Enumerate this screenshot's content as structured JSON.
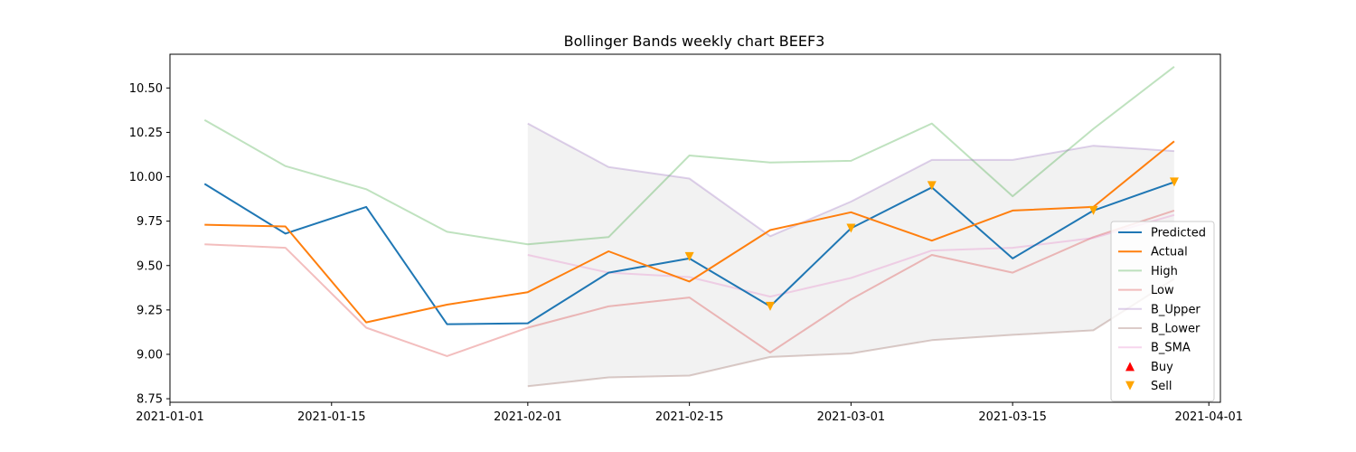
{
  "chart_data": {
    "type": "line",
    "title": "Bollinger Bands weekly chart BEEF3",
    "xlabel": "",
    "ylabel": "",
    "x": [
      "2021-01-04",
      "2021-01-11",
      "2021-01-18",
      "2021-01-25",
      "2021-02-01",
      "2021-02-08",
      "2021-02-15",
      "2021-02-22",
      "2021-03-01",
      "2021-03-08",
      "2021-03-15",
      "2021-03-22",
      "2021-03-29"
    ],
    "xlim": [
      "2021-01-01",
      "2021-04-02"
    ],
    "ylim": [
      8.73,
      10.69
    ],
    "x_ticks": [
      "2021-01-01",
      "2021-01-15",
      "2021-02-01",
      "2021-02-15",
      "2021-03-01",
      "2021-03-15",
      "2021-04-01"
    ],
    "y_ticks": [
      8.75,
      9.0,
      9.25,
      9.5,
      9.75,
      10.0,
      10.25,
      10.5
    ],
    "y_tick_labels": [
      "8.75",
      "9.00",
      "9.25",
      "9.50",
      "9.75",
      "10.00",
      "10.25",
      "10.50"
    ],
    "grid": false,
    "legend_position": "lower-right",
    "series": [
      {
        "name": "Predicted",
        "color": "#1f77b4",
        "alpha": 1.0,
        "values": [
          9.96,
          9.68,
          9.83,
          9.17,
          9.175,
          9.46,
          9.54,
          9.27,
          9.71,
          9.94,
          9.54,
          9.81,
          9.97
        ]
      },
      {
        "name": "Actual",
        "color": "#ff7f0e",
        "alpha": 1.0,
        "values": [
          9.73,
          9.72,
          9.18,
          9.28,
          9.35,
          9.58,
          9.41,
          9.7,
          9.8,
          9.64,
          9.81,
          9.83,
          10.2
        ]
      },
      {
        "name": "High",
        "color": "#2ca02c",
        "alpha": 0.3,
        "values": [
          10.32,
          10.06,
          9.93,
          9.69,
          9.62,
          9.66,
          10.12,
          10.08,
          10.09,
          10.3,
          9.89,
          10.27,
          10.62
        ]
      },
      {
        "name": "Low",
        "color": "#d62728",
        "alpha": 0.3,
        "values": [
          9.62,
          9.6,
          9.15,
          8.99,
          9.15,
          9.27,
          9.32,
          9.01,
          9.31,
          9.56,
          9.46,
          9.66,
          9.81
        ]
      },
      {
        "name": "B_Upper",
        "color": "#9467bd",
        "alpha": 0.3,
        "values": [
          null,
          null,
          null,
          null,
          10.3,
          10.055,
          9.99,
          9.665,
          9.86,
          10.095,
          10.095,
          10.175,
          10.145
        ]
      },
      {
        "name": "B_Lower",
        "color": "#8c564b",
        "alpha": 0.3,
        "values": [
          null,
          null,
          null,
          null,
          8.82,
          8.87,
          8.88,
          8.985,
          9.005,
          9.08,
          9.11,
          9.135,
          9.425
        ]
      },
      {
        "name": "B_SMA",
        "color": "#e377c2",
        "alpha": 0.3,
        "values": [
          null,
          null,
          null,
          null,
          9.56,
          9.46,
          9.435,
          9.325,
          9.43,
          9.585,
          9.6,
          9.655,
          9.785
        ]
      }
    ],
    "band_fill": {
      "upper": "B_Upper",
      "lower": "B_Lower",
      "color": "#808080",
      "alpha": 0.1
    },
    "markers": [
      {
        "name": "Buy",
        "shape": "triangle-up",
        "color": "#ff0000",
        "points": []
      },
      {
        "name": "Sell",
        "shape": "triangle-down",
        "color": "#ffa500",
        "points": [
          {
            "x": "2021-02-15",
            "y": 9.55
          },
          {
            "x": "2021-02-22",
            "y": 9.27
          },
          {
            "x": "2021-03-01",
            "y": 9.71
          },
          {
            "x": "2021-03-08",
            "y": 9.95
          },
          {
            "x": "2021-03-22",
            "y": 9.81
          },
          {
            "x": "2021-03-29",
            "y": 9.97
          }
        ]
      }
    ]
  }
}
